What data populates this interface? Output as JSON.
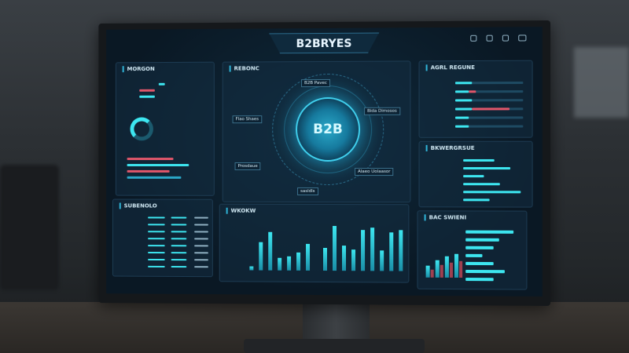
{
  "header": {
    "title": "B2BRYES"
  },
  "panels": {
    "left_top": {
      "title": "MORGON"
    },
    "center": {
      "title": "REBONC",
      "hub": "B2B",
      "nodes": [
        "B2B Pavec",
        "Bida Dimosos",
        "Flao Shaes",
        "Prosdaue",
        "Alaeo Uolaasor",
        "sasldls"
      ]
    },
    "right_top": {
      "title": "AGRL REGUNE",
      "bars": [
        [
          0.25,
          0.0
        ],
        [
          0.2,
          0.1
        ],
        [
          0.25,
          0.0
        ],
        [
          0.25,
          0.55
        ],
        [
          0.2,
          0.0
        ],
        [
          0.2,
          0.0
        ]
      ]
    },
    "right_mid": {
      "title": "BKWERGRSUE",
      "bars": [
        0.3,
        0.45,
        0.2,
        0.35,
        0.55,
        0.25
      ]
    },
    "bottom_left": {
      "title": "SUBENOLO"
    },
    "bottom_center": {
      "title": "WKOKW",
      "values": [
        8,
        55,
        75,
        25,
        28,
        35,
        52,
        45,
        88,
        50,
        42,
        80,
        85,
        40,
        75,
        80
      ]
    },
    "bottom_right": {
      "title": "BAC SWIENI",
      "hbars": [
        0.85,
        0.6,
        0.5,
        0.3,
        0.5,
        0.7,
        0.5
      ],
      "vbars": [
        30,
        45,
        55,
        60
      ]
    }
  },
  "colors": {
    "accent": "#3de6f0",
    "alert": "#e0566a",
    "bg": "#0a1824"
  }
}
